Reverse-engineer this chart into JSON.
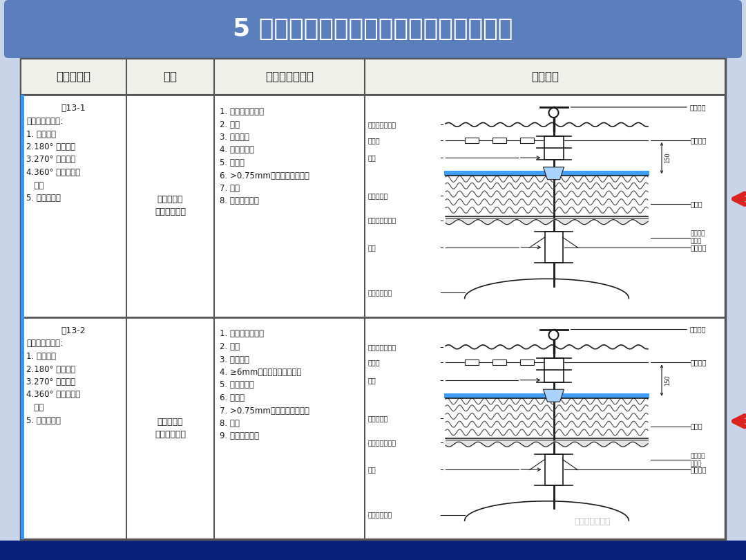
{
  "title": "5 金属屋面采用防水卷材的推荐构造做法",
  "title_bg_color": "#5b7fbc",
  "title_text_color": "#ffffff",
  "bg_color": "#c8d4e8",
  "table_bg": "#ffffff",
  "table_border": "#555555",
  "header_row": [
    "编号及类别",
    "名称",
    "材料及分层做法",
    "构造简图"
  ],
  "row1_col1_title": "屋13-1",
  "row1_col1_body": "上层板固定方式:\n1. 搭接连接\n2.180° 咬边连接\n3.270° 咬边连接\n4.360° 及以上咬边\n   连接\n5. 扣合式连接",
  "row1_col2": "压型金属板\n复合保温屋面",
  "row1_col3": "1. 外层压型金属板\n2. 檩条\n3. 防水卷材\n4. 保温隔热层\n5. 隔汽层\n6. >0.75mm厚压型钢板持力板\n7. 檩条\n8. 屋面承重结构",
  "row2_col1_title": "屋13-2",
  "row2_col1_body": "上层板固定方式:\n1. 搭接连接\n2.180° 咬边连接\n3.270° 咬边连接\n4.360° 及以上咬边\n   连接\n5. 扣合式连接",
  "row2_col2": "压型金属板\n复合保温屋面",
  "row2_col3": "1. 外层压型金属板\n2. 檩条\n3. 防水卷材\n4. ≥6mm厚玻纤维增强水泥板\n5. 保温隔热层\n6. 隔汽层\n7. >0.75mm厚压型钢板持力板\n8. 檩条\n9. 屋面承重结构",
  "arrow_color": "#dd2222",
  "highlight_color": "#3399ff",
  "bottom_bg_color": "#0a1f7a",
  "watermark": "朱明之关于建筑",
  "diagram_labels_left": [
    "外层压型金属板",
    "隔离垫",
    "檩条",
    "保温隔热层",
    "压型钢板持力板",
    "檩条",
    "屋面承重结构"
  ],
  "diagram_labels_right": [
    "固定支架",
    "防水卷材",
    "隔汽层",
    "防水卷材\n泛水件",
    "支撑立柱"
  ]
}
